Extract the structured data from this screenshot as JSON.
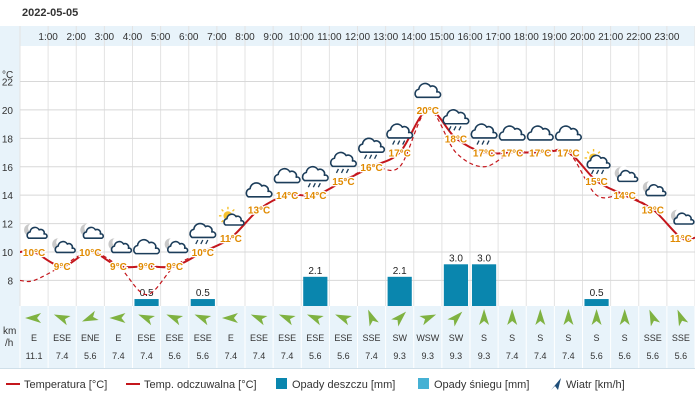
{
  "date": "2022-05-05",
  "units": {
    "temp": "°C",
    "wind_line1": "km",
    "wind_line2": "/h"
  },
  "colors": {
    "temp": "#c4161c",
    "rain": "#0a86ae",
    "snow": "#45b1d4",
    "wind_arrow": "#7fb241",
    "label_orange": "#e08a00",
    "panel": "#e8f3fa"
  },
  "chart_data": {
    "type": "line",
    "hours": [
      "1:00",
      "2:00",
      "3:00",
      "4:00",
      "5:00",
      "6:00",
      "7:00",
      "8:00",
      "9:00",
      "10:00",
      "11:00",
      "12:00",
      "13:00",
      "14:00",
      "15:00",
      "16:00",
      "17:00",
      "18:00",
      "19:00",
      "20:00",
      "21:00",
      "22:00",
      "23:00"
    ],
    "y_ticks": [
      8,
      10,
      12,
      14,
      16,
      18,
      20,
      22
    ],
    "ylim": [
      6.2,
      24.5
    ],
    "temperature": [
      10,
      9,
      10,
      9,
      9,
      9,
      10,
      11,
      13,
      14,
      14,
      15,
      16,
      17,
      20,
      18,
      17,
      17,
      17,
      17,
      15,
      14,
      13,
      11
    ],
    "temperature_labels": [
      "10°C",
      "9°C",
      "10°C",
      "9°C",
      "9°C",
      "9°C",
      "10°C",
      "11°C",
      "13°C",
      "14°C",
      "14°C",
      "15°C",
      "16°C",
      "17°C",
      "20°C",
      "18°C",
      "17°C",
      "17°C",
      "17°C",
      "17°C",
      "15°C",
      "14°C",
      "13°C",
      "11°C"
    ],
    "feels_like": [
      8,
      9,
      10,
      9,
      7,
      9,
      10,
      11,
      13,
      14,
      14,
      15,
      16,
      16,
      20,
      17,
      16,
      17,
      17,
      17,
      14,
      14,
      13,
      11
    ],
    "rain_mm": [
      0,
      0,
      0,
      0,
      0.5,
      0,
      0.5,
      0,
      0,
      0,
      2.1,
      0,
      0,
      2.1,
      0,
      3.0,
      3.0,
      0,
      0,
      0,
      0.5,
      0,
      0,
      0
    ],
    "rain_labels": [
      "",
      "",
      "",
      "",
      "0.5",
      "",
      "0.5",
      "",
      "",
      "",
      "2.1",
      "",
      "",
      "2.1",
      "",
      "3.0",
      "3.0",
      "",
      "",
      "",
      "0.5",
      "",
      "",
      ""
    ],
    "snow_mm": [
      0,
      0,
      0,
      0,
      0,
      0,
      0,
      0,
      0,
      0,
      0,
      0,
      0,
      0,
      0,
      0,
      0,
      0,
      0,
      0,
      0,
      0,
      0,
      0
    ],
    "wind_dir": [
      "E",
      "ESE",
      "ENE",
      "E",
      "ESE",
      "ESE",
      "ESE",
      "E",
      "ESE",
      "ESE",
      "ESE",
      "ESE",
      "SSE",
      "SW",
      "WSW",
      "SW",
      "S",
      "S",
      "S",
      "S",
      "S",
      "S",
      "SSE",
      "SSE"
    ],
    "wind_speed": [
      "11.1",
      "7.4",
      "5.6",
      "7.4",
      "7.4",
      "5.6",
      "5.6",
      "7.4",
      "7.4",
      "7.4",
      "5.6",
      "5.6",
      "7.4",
      "9.3",
      "9.3",
      "9.3",
      "9.3",
      "7.4",
      "7.4",
      "7.4",
      "5.6",
      "5.6",
      "5.6",
      "5.6"
    ],
    "weather_icons": [
      "partly-cloudy-night-icon",
      "partly-cloudy-night-icon",
      "partly-cloudy-night-icon",
      "partly-cloudy-night-icon",
      "cloudy-icon",
      "partly-cloudy-night-icon",
      "rain-icon",
      "partly-sunny-icon",
      "cloudy-icon",
      "cloudy-icon",
      "rain-icon",
      "rain-icon",
      "rain-icon",
      "rain-icon",
      "cloudy-icon",
      "rain-icon",
      "rain-icon",
      "cloudy-icon",
      "cloudy-icon",
      "cloudy-icon",
      "rain-sun-icon",
      "partly-cloudy-night-icon",
      "partly-cloudy-night-icon",
      "partly-cloudy-night-icon"
    ]
  },
  "legend": {
    "temperature": "Temperatura [°C]",
    "feels_like": "Temp. odczuwalna [°C]",
    "rain": "Opady deszczu [mm]",
    "snow": "Opady śniegu [mm]",
    "wind": "Wiatr [km/h]"
  }
}
